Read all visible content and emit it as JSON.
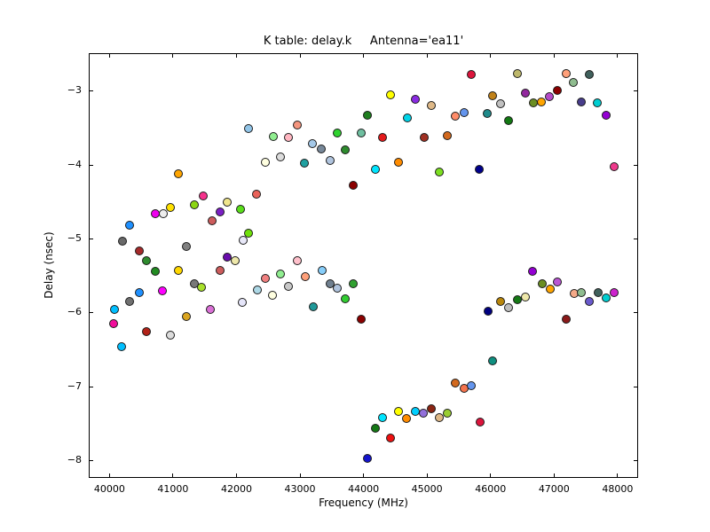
{
  "chart_data": {
    "type": "scatter",
    "title": "K table: delay.k     Antenna='ea11'",
    "xlabel": "Frequency (MHz)",
    "ylabel": "Delay (nsec)",
    "xlim": [
      39674,
      48323
    ],
    "ylim": [
      -8.23,
      -2.49
    ],
    "xticks": [
      40000,
      41000,
      42000,
      43000,
      44000,
      45000,
      46000,
      47000,
      48000
    ],
    "xtick_labels": [
      "40000",
      "41000",
      "42000",
      "43000",
      "44000",
      "45000",
      "46000",
      "47000",
      "48000"
    ],
    "yticks": [
      -8,
      -7,
      -6,
      -5,
      -4,
      -3
    ],
    "ytick_labels": [
      "−8",
      "−7",
      "−6",
      "−5",
      "−4",
      "−3"
    ],
    "grid": false,
    "legend": null,
    "background": "#ffffff",
    "spine_color": "#000000",
    "marker": {
      "size": 10,
      "edge_color": "#1a1a1a"
    },
    "points": [
      {
        "x": 42190,
        "y": -3.51,
        "c": "#92C5E8"
      },
      {
        "x": 42580,
        "y": -3.62,
        "c": "#90EE90"
      },
      {
        "x": 42450,
        "y": -3.96,
        "c": "#FFFFE0"
      },
      {
        "x": 41085,
        "y": -4.12,
        "c": "#FFA500"
      },
      {
        "x": 41470,
        "y": -4.42,
        "c": "#F5328C"
      },
      {
        "x": 42320,
        "y": -4.39,
        "c": "#E9635A"
      },
      {
        "x": 44430,
        "y": -3.05,
        "c": "#FFFF00"
      },
      {
        "x": 44815,
        "y": -3.11,
        "c": "#8A2BE2"
      },
      {
        "x": 45070,
        "y": -3.2,
        "c": "#DEB887"
      },
      {
        "x": 44055,
        "y": -3.33,
        "c": "#1E7E1E"
      },
      {
        "x": 44690,
        "y": -3.36,
        "c": "#00D4E8"
      },
      {
        "x": 42955,
        "y": -3.46,
        "c": "#F4957E"
      },
      {
        "x": 42820,
        "y": -3.63,
        "c": "#FFB6C1"
      },
      {
        "x": 43590,
        "y": -3.57,
        "c": "#2FD32F"
      },
      {
        "x": 43960,
        "y": -3.57,
        "c": "#6FBFA0"
      },
      {
        "x": 44300,
        "y": -3.63,
        "c": "#E31A1C"
      },
      {
        "x": 44950,
        "y": -3.63,
        "c": "#A03023"
      },
      {
        "x": 45325,
        "y": -3.6,
        "c": "#D2691E"
      },
      {
        "x": 43200,
        "y": -3.71,
        "c": "#A4C8E8"
      },
      {
        "x": 43335,
        "y": -3.78,
        "c": "#778899"
      },
      {
        "x": 43715,
        "y": -3.8,
        "c": "#2E8B2E"
      },
      {
        "x": 42690,
        "y": -3.89,
        "c": "#DCDCDC"
      },
      {
        "x": 43470,
        "y": -3.94,
        "c": "#B0C4DE"
      },
      {
        "x": 43075,
        "y": -3.97,
        "c": "#20A0A0"
      },
      {
        "x": 44545,
        "y": -3.96,
        "c": "#FF8C00"
      },
      {
        "x": 44185,
        "y": -4.06,
        "c": "#00E5FF"
      },
      {
        "x": 45190,
        "y": -4.1,
        "c": "#7CDF20"
      },
      {
        "x": 43840,
        "y": -4.27,
        "c": "#8B0000"
      },
      {
        "x": 45695,
        "y": -2.78,
        "c": "#DC143C"
      },
      {
        "x": 46425,
        "y": -2.76,
        "c": "#BDB76B"
      },
      {
        "x": 47185,
        "y": -2.77,
        "c": "#FFA07A"
      },
      {
        "x": 47550,
        "y": -2.78,
        "c": "#40605C"
      },
      {
        "x": 47300,
        "y": -2.88,
        "c": "#8FBC8F"
      },
      {
        "x": 47045,
        "y": -2.99,
        "c": "#8B0000"
      },
      {
        "x": 46545,
        "y": -3.03,
        "c": "#92279E"
      },
      {
        "x": 46925,
        "y": -3.08,
        "c": "#B44BC8"
      },
      {
        "x": 46035,
        "y": -3.07,
        "c": "#C08118"
      },
      {
        "x": 46680,
        "y": -3.16,
        "c": "#6B8E23"
      },
      {
        "x": 46800,
        "y": -3.15,
        "c": "#FFA500"
      },
      {
        "x": 46155,
        "y": -3.17,
        "c": "#C0C0C0"
      },
      {
        "x": 47425,
        "y": -3.15,
        "c": "#483D8B"
      },
      {
        "x": 47685,
        "y": -3.16,
        "c": "#00CED1"
      },
      {
        "x": 45580,
        "y": -3.29,
        "c": "#6495ED"
      },
      {
        "x": 45450,
        "y": -3.34,
        "c": "#FF8C69"
      },
      {
        "x": 45950,
        "y": -3.3,
        "c": "#1F8A8A"
      },
      {
        "x": 47815,
        "y": -3.33,
        "c": "#9400D3"
      },
      {
        "x": 46285,
        "y": -3.4,
        "c": "#137813"
      },
      {
        "x": 45825,
        "y": -4.06,
        "c": "#00008B"
      },
      {
        "x": 47945,
        "y": -4.02,
        "c": "#EE3A8C"
      },
      {
        "x": 40720,
        "y": -4.66,
        "c": "#EE00EE"
      },
      {
        "x": 40845,
        "y": -4.66,
        "c": "#EDEDED"
      },
      {
        "x": 40965,
        "y": -4.58,
        "c": "#FFE100"
      },
      {
        "x": 41330,
        "y": -4.54,
        "c": "#8CD612"
      },
      {
        "x": 41850,
        "y": -4.5,
        "c": "#F0E68C"
      },
      {
        "x": 41735,
        "y": -4.63,
        "c": "#7B1FC4"
      },
      {
        "x": 42070,
        "y": -4.6,
        "c": "#5ADE1A"
      },
      {
        "x": 40320,
        "y": -4.82,
        "c": "#1E90FF"
      },
      {
        "x": 41610,
        "y": -4.75,
        "c": "#CD5C5C"
      },
      {
        "x": 42190,
        "y": -4.92,
        "c": "#6FE00A"
      },
      {
        "x": 40200,
        "y": -5.03,
        "c": "#696969"
      },
      {
        "x": 42100,
        "y": -5.02,
        "c": "#E8E8F8"
      },
      {
        "x": 40465,
        "y": -5.16,
        "c": "#A52A2A"
      },
      {
        "x": 41210,
        "y": -5.1,
        "c": "#808080"
      },
      {
        "x": 40585,
        "y": -5.29,
        "c": "#2E8B2E"
      },
      {
        "x": 41855,
        "y": -5.25,
        "c": "#6A0DAD"
      },
      {
        "x": 41975,
        "y": -5.3,
        "c": "#EEE8AA"
      },
      {
        "x": 40720,
        "y": -5.44,
        "c": "#228B22"
      },
      {
        "x": 41085,
        "y": -5.43,
        "c": "#FFD700"
      },
      {
        "x": 41745,
        "y": -5.43,
        "c": "#CD5C5C"
      },
      {
        "x": 41340,
        "y": -5.6,
        "c": "#787878"
      },
      {
        "x": 41450,
        "y": -5.65,
        "c": "#A8E02A"
      },
      {
        "x": 42450,
        "y": -5.53,
        "c": "#F08080"
      },
      {
        "x": 40835,
        "y": -5.7,
        "c": "#FF00FF"
      },
      {
        "x": 40470,
        "y": -5.73,
        "c": "#1E90FF"
      },
      {
        "x": 42330,
        "y": -5.69,
        "c": "#ADD8E6"
      },
      {
        "x": 42565,
        "y": -5.76,
        "c": "#FFFFE0"
      },
      {
        "x": 40320,
        "y": -5.85,
        "c": "#707070"
      },
      {
        "x": 42085,
        "y": -5.86,
        "c": "#E6E6FA"
      },
      {
        "x": 40080,
        "y": -5.95,
        "c": "#00BFFF"
      },
      {
        "x": 41585,
        "y": -5.95,
        "c": "#DA70D6"
      },
      {
        "x": 41215,
        "y": -6.05,
        "c": "#DAA520"
      },
      {
        "x": 40070,
        "y": -6.14,
        "c": "#F10D9B"
      },
      {
        "x": 40585,
        "y": -6.25,
        "c": "#B22218"
      },
      {
        "x": 40960,
        "y": -6.3,
        "c": "#DCDCDC"
      },
      {
        "x": 40195,
        "y": -6.46,
        "c": "#00BFFF"
      },
      {
        "x": 42955,
        "y": -5.3,
        "c": "#FFC0CB"
      },
      {
        "x": 42690,
        "y": -5.47,
        "c": "#90EE90"
      },
      {
        "x": 43080,
        "y": -5.51,
        "c": "#FFA07A"
      },
      {
        "x": 43345,
        "y": -5.43,
        "c": "#87CEFA"
      },
      {
        "x": 42820,
        "y": -5.64,
        "c": "#C8C8C8"
      },
      {
        "x": 43470,
        "y": -5.61,
        "c": "#708090"
      },
      {
        "x": 43590,
        "y": -5.67,
        "c": "#B0C4DE"
      },
      {
        "x": 43835,
        "y": -5.61,
        "c": "#30A030"
      },
      {
        "x": 43715,
        "y": -5.81,
        "c": "#32CD32"
      },
      {
        "x": 43210,
        "y": -5.92,
        "c": "#209999"
      },
      {
        "x": 43965,
        "y": -6.09,
        "c": "#8B0000"
      },
      {
        "x": 46665,
        "y": -5.44,
        "c": "#9400D3"
      },
      {
        "x": 46810,
        "y": -5.6,
        "c": "#6B8E23"
      },
      {
        "x": 47055,
        "y": -5.58,
        "c": "#BA55D3"
      },
      {
        "x": 46935,
        "y": -5.68,
        "c": "#FFA500"
      },
      {
        "x": 46160,
        "y": -5.84,
        "c": "#B8860B"
      },
      {
        "x": 46420,
        "y": -5.82,
        "c": "#157815"
      },
      {
        "x": 46545,
        "y": -5.78,
        "c": "#EEE8AA"
      },
      {
        "x": 46280,
        "y": -5.93,
        "c": "#BEBEBE"
      },
      {
        "x": 45955,
        "y": -5.98,
        "c": "#000080"
      },
      {
        "x": 47315,
        "y": -5.74,
        "c": "#F4A988"
      },
      {
        "x": 47425,
        "y": -5.72,
        "c": "#8FBC8F"
      },
      {
        "x": 47690,
        "y": -5.72,
        "c": "#40605C"
      },
      {
        "x": 47560,
        "y": -5.84,
        "c": "#6A5ACD"
      },
      {
        "x": 47820,
        "y": -5.8,
        "c": "#00CED1"
      },
      {
        "x": 47945,
        "y": -5.73,
        "c": "#CC22CC"
      },
      {
        "x": 47185,
        "y": -6.08,
        "c": "#8B1A1A"
      },
      {
        "x": 46030,
        "y": -6.65,
        "c": "#0F8F80"
      },
      {
        "x": 45445,
        "y": -6.95,
        "c": "#D2691E"
      },
      {
        "x": 45580,
        "y": -7.02,
        "c": "#F4734D"
      },
      {
        "x": 45700,
        "y": -6.98,
        "c": "#6495ED"
      },
      {
        "x": 45830,
        "y": -7.48,
        "c": "#DC143C"
      },
      {
        "x": 44550,
        "y": -7.33,
        "c": "#FFFF00"
      },
      {
        "x": 44305,
        "y": -7.41,
        "c": "#00E5FF"
      },
      {
        "x": 44815,
        "y": -7.33,
        "c": "#00CFFF"
      },
      {
        "x": 44945,
        "y": -7.35,
        "c": "#9370DB"
      },
      {
        "x": 45070,
        "y": -7.29,
        "c": "#8B2513"
      },
      {
        "x": 44680,
        "y": -7.43,
        "c": "#FF8C00"
      },
      {
        "x": 45200,
        "y": -7.41,
        "c": "#DEB887"
      },
      {
        "x": 45315,
        "y": -7.35,
        "c": "#9ACD32"
      },
      {
        "x": 44185,
        "y": -7.56,
        "c": "#157815"
      },
      {
        "x": 44425,
        "y": -7.69,
        "c": "#EE1111"
      },
      {
        "x": 44055,
        "y": -7.97,
        "c": "#1414CC"
      }
    ]
  }
}
